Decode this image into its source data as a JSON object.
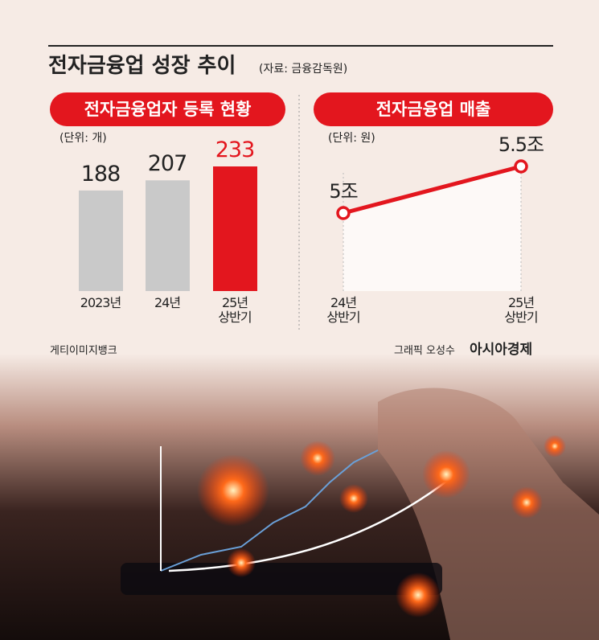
{
  "header": {
    "title": "전자금융업 성장 추이",
    "source": "(자료: 금융감독원)"
  },
  "chart_data": [
    {
      "type": "bar",
      "title": "전자금융업자 등록 현황",
      "unit": "(단위: 개)",
      "categories": [
        "2023년",
        "24년",
        "25년\n상반기"
      ],
      "values": [
        188,
        207,
        233
      ],
      "colors": [
        "#c9c9c9",
        "#c9c9c9",
        "#e3161e"
      ]
    },
    {
      "type": "line",
      "title": "전자금융업 매출",
      "unit": "(단위: 원)",
      "categories": [
        "24년\n상반기",
        "25년\n상반기"
      ],
      "values": [
        5,
        5.5
      ],
      "value_labels": [
        "5조",
        "5.5조"
      ],
      "color": "#e3161e"
    }
  ],
  "footer": {
    "photo_credit": "게티이미지뱅크",
    "graphic_credit": "그래픽 오성수",
    "brand": "아시아경제"
  }
}
